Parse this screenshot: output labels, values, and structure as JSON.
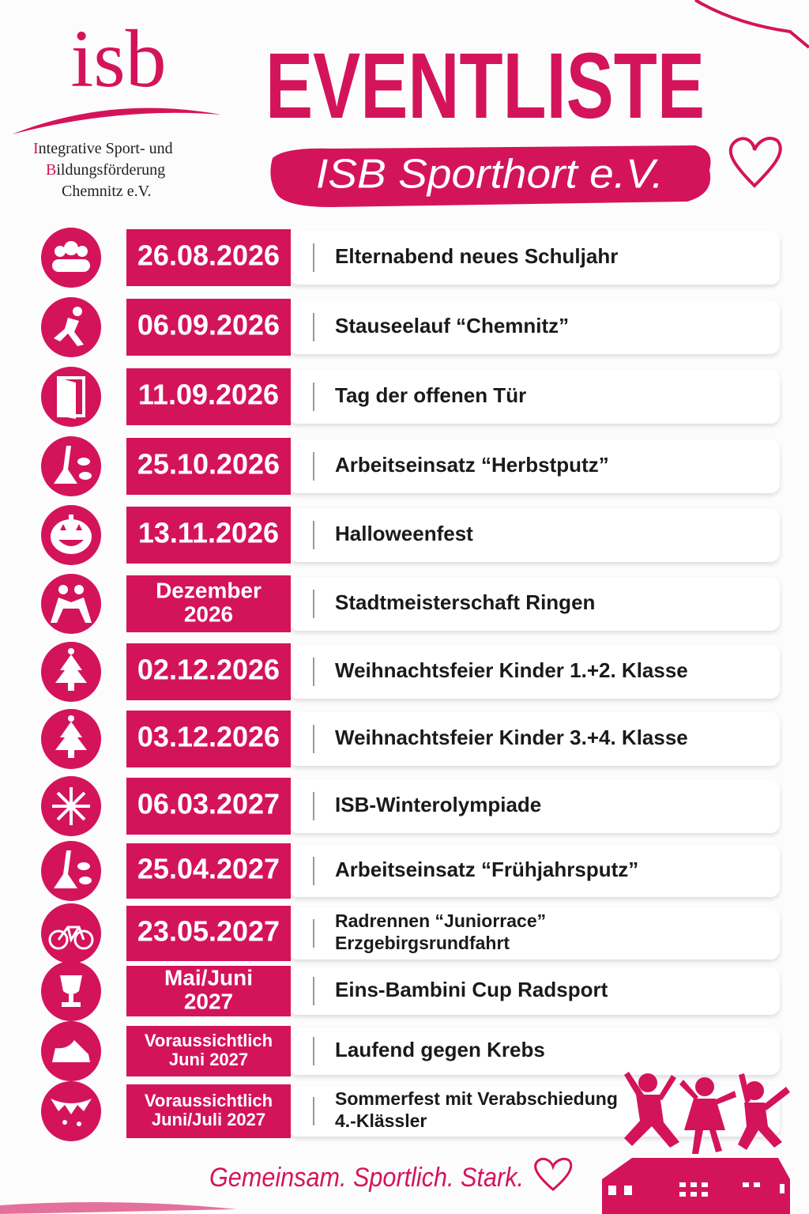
{
  "logo": {
    "mark": "isb",
    "lines": [
      "Integrative Sport- und",
      "Bildungsförderung",
      "Chemnitz e.V."
    ]
  },
  "header": {
    "title": "EVENTLISTE",
    "subtitle": "ISB Sporthort e.V."
  },
  "events": [
    {
      "date": [
        "26.08.2026"
      ],
      "text": [
        "Elternabend neues Schuljahr"
      ]
    },
    {
      "date": [
        "06.09.2026"
      ],
      "text": [
        "Stauseelauf “Chemnitz”"
      ]
    },
    {
      "date": [
        "11.09.2026"
      ],
      "text": [
        "Tag der offenen Tür"
      ]
    },
    {
      "date": [
        "25.10.2026"
      ],
      "text": [
        "Arbeitseinsatz “Herbstputz”"
      ]
    },
    {
      "date": [
        "13.11.2026"
      ],
      "text": [
        "Halloweenfest"
      ]
    },
    {
      "date": [
        "Dezember",
        "2026"
      ],
      "text": [
        "Stadtmeisterschaft Ringen"
      ]
    },
    {
      "date": [
        "02.12.2026"
      ],
      "text": [
        "Weihnachtsfeier Kinder 1.+2. Klasse"
      ]
    },
    {
      "date": [
        "03.12.2026"
      ],
      "text": [
        "Weihnachtsfeier Kinder 3.+4. Klasse"
      ]
    },
    {
      "date": [
        "06.03.2027"
      ],
      "text": [
        "ISB-Winterolympiade"
      ]
    },
    {
      "date": [
        "25.04.2027"
      ],
      "text": [
        "Arbeitseinsatz “Frühjahrsputz”"
      ]
    },
    {
      "date": [
        "23.05.2027"
      ],
      "text": [
        "Radrennen “Juniorrace”",
        "Erzgebirgsrundfahrt"
      ]
    },
    {
      "date": [
        "Mai/Juni",
        "2027"
      ],
      "text": [
        "Eins-Bambini Cup Radsport"
      ]
    },
    {
      "date": [
        "Voraussichtlich",
        "Juni 2027"
      ],
      "text": [
        "Laufend gegen Krebs"
      ]
    },
    {
      "date": [
        "Voraussichtlich",
        "Juni/Juli 2027"
      ],
      "text": [
        "Sommerfest mit Verabschiedung",
        "4.-Klässler"
      ]
    }
  ],
  "footer": {
    "tagline": "Gemeinsam. Sportlich. Stark."
  }
}
